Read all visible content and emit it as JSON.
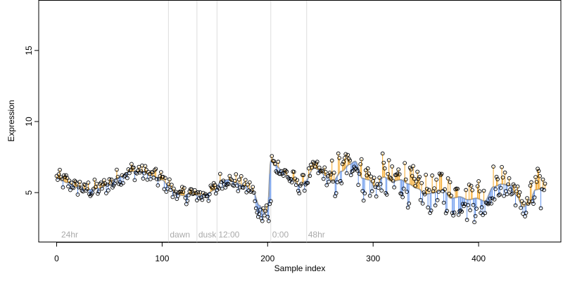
{
  "chart_data": {
    "type": "scatter",
    "title": "",
    "xlabel": "Sample index",
    "ylabel": "Expression",
    "xlim": [
      -17,
      478
    ],
    "ylim": [
      1.5,
      18.5
    ],
    "xticks": [
      0,
      100,
      200,
      300,
      400
    ],
    "yticks": [
      5,
      10,
      15
    ],
    "grid": false,
    "legend": "none",
    "colors": {
      "above_trend": "#f5a623",
      "below_trend": "#6495ed",
      "trend": "#a0a0a0",
      "point_edge": "#000000",
      "divider": "#dddddd",
      "annotation_text": "#aaaaaa"
    },
    "annotations": [
      {
        "x": 3,
        "label": "24hr",
        "divider": false
      },
      {
        "x": 106,
        "label": "dawn",
        "divider": true
      },
      {
        "x": 133,
        "label": "dusk",
        "divider": true
      },
      {
        "x": 152,
        "label": "12:00",
        "divider": true
      },
      {
        "x": 203,
        "label": "0:00",
        "divider": true
      },
      {
        "x": 237,
        "label": "48hr",
        "divider": true
      }
    ],
    "trend_knots": [
      [
        2,
        6.0
      ],
      [
        10,
        5.7
      ],
      [
        20,
        5.4
      ],
      [
        30,
        5.2
      ],
      [
        40,
        5.3
      ],
      [
        50,
        5.6
      ],
      [
        60,
        6.1
      ],
      [
        70,
        6.5
      ],
      [
        80,
        6.5
      ],
      [
        90,
        6.2
      ],
      [
        100,
        5.9
      ],
      [
        106,
        5.5
      ],
      [
        112,
        5.0
      ],
      [
        120,
        4.8
      ],
      [
        128,
        4.9
      ],
      [
        135,
        4.8
      ],
      [
        142,
        4.9
      ],
      [
        150,
        5.2
      ],
      [
        156,
        5.8
      ],
      [
        162,
        5.9
      ],
      [
        170,
        5.7
      ],
      [
        178,
        5.5
      ],
      [
        186,
        5.1
      ],
      [
        192,
        4.1
      ],
      [
        197,
        3.6
      ],
      [
        200,
        3.8
      ],
      [
        203,
        7.2
      ],
      [
        208,
        6.9
      ],
      [
        214,
        6.5
      ],
      [
        222,
        6.0
      ],
      [
        230,
        5.5
      ],
      [
        236,
        5.8
      ],
      [
        244,
        6.8
      ],
      [
        248,
        6.6
      ],
      [
        255,
        6.2
      ],
      [
        262,
        5.8
      ],
      [
        270,
        6.5
      ],
      [
        278,
        7.0
      ],
      [
        283,
        7.2
      ],
      [
        290,
        6.0
      ],
      [
        296,
        5.9
      ],
      [
        302,
        5.4
      ],
      [
        310,
        6.1
      ],
      [
        318,
        5.8
      ],
      [
        326,
        5.9
      ],
      [
        334,
        5.6
      ],
      [
        342,
        5.3
      ],
      [
        350,
        4.9
      ],
      [
        358,
        5.0
      ],
      [
        366,
        5.2
      ],
      [
        374,
        4.6
      ],
      [
        382,
        4.7
      ],
      [
        390,
        4.5
      ],
      [
        398,
        4.6
      ],
      [
        406,
        4.4
      ],
      [
        414,
        5.4
      ],
      [
        422,
        5.6
      ],
      [
        430,
        5.5
      ],
      [
        436,
        4.8
      ],
      [
        442,
        4.0
      ],
      [
        448,
        4.2
      ],
      [
        454,
        5.2
      ],
      [
        460,
        5.3
      ]
    ],
    "point_generation": {
      "n_points": 464,
      "dip_range": [
        186,
        203
      ],
      "dip_values": [
        5.4,
        5.0,
        4.4,
        3.9,
        3.6,
        3.3,
        3.5,
        3.8,
        3.2,
        3.0,
        3.9,
        3.4,
        3.7,
        4.1,
        3.3,
        3.0,
        4.2,
        4.4
      ]
    }
  }
}
